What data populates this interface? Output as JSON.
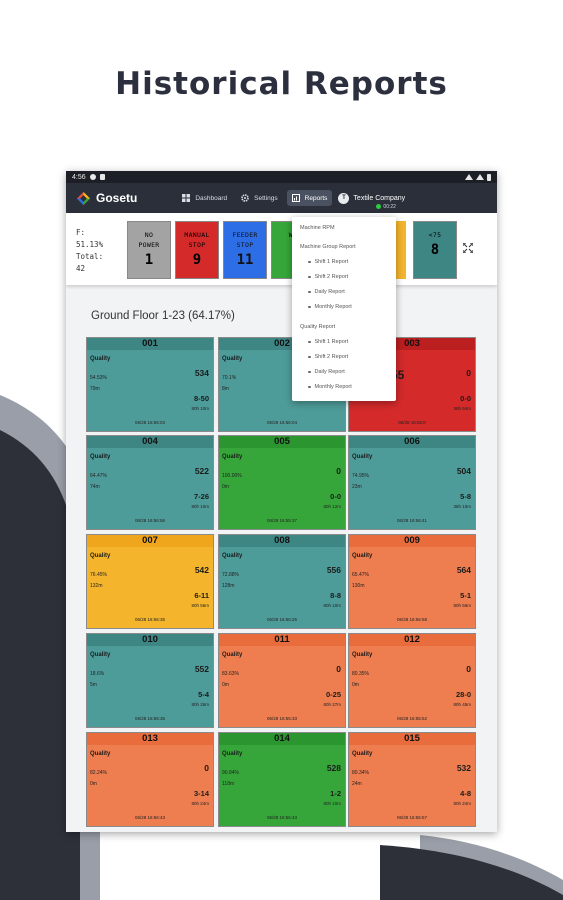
{
  "headline": "Historical Reports",
  "statusbar": {
    "time": "4:56"
  },
  "app": {
    "brand": "Gosetu"
  },
  "nav": [
    {
      "label": "Dashboard",
      "icon": "dashboard-icon"
    },
    {
      "label": "Settings",
      "icon": "gear-icon"
    },
    {
      "label": "Reports",
      "icon": "reports-icon",
      "active": true
    }
  ],
  "user": {
    "initial": "T",
    "company": "Textile Company",
    "clock": "00:22"
  },
  "stats": {
    "line1": "F:",
    "line2": "51.13%",
    "line3": "Total:",
    "line4": "42"
  },
  "summary_boxes": [
    {
      "label1": "NO",
      "label2": "POWER",
      "value": "1",
      "color": "#a3a3a3"
    },
    {
      "label1": "MANUAL",
      "label2": "STOP",
      "value": "9",
      "color": "#d42a2a"
    },
    {
      "label1": "FEEDER",
      "label2": "STOP",
      "value": "11",
      "color": "#2d6ee6"
    },
    {
      "label1": "Wo",
      "label2": "",
      "value": "",
      "color": "#36a63a"
    },
    {
      "label1": "<75",
      "label2": "",
      "value": "8",
      "color": "#3e8684"
    }
  ],
  "floor_title": "Ground Floor 1-23 (64.17%)",
  "machines": [
    {
      "id": "001",
      "color": "teal",
      "quality": "Quality",
      "pct": "54.53%",
      "dur": "79m",
      "count": "534",
      "shift": "8-50",
      "elapsed": "80h 10m",
      "ts": "06/28 16:56:03"
    },
    {
      "id": "002",
      "color": "teal",
      "quality": "Quality",
      "pct": "70.1%",
      "dur": "8m",
      "count": "",
      "shift": "",
      "elapsed": "",
      "ts": "06/28 16:56:04"
    },
    {
      "id": "003",
      "color": "red",
      "quality": "",
      "pct": "",
      "dur": "",
      "count": "0",
      "shift": "0-0",
      "elapsed": "38h 54m",
      "ts": "06/28 16:56:0",
      "big": "55"
    },
    {
      "id": "004",
      "color": "teal",
      "quality": "Quality",
      "pct": "64.47%",
      "dur": "74m",
      "count": "522",
      "shift": "7-26",
      "elapsed": "80h 10m",
      "ts": "06/28 16:56:56"
    },
    {
      "id": "005",
      "color": "green",
      "quality": "Quality",
      "pct": "100.00%",
      "dur": "0m",
      "count": "0",
      "shift": "0-0",
      "elapsed": "80h 12m",
      "ts": "06/28 16:55:37"
    },
    {
      "id": "006",
      "color": "teal",
      "quality": "Quality",
      "pct": "74.95%",
      "dur": "23m",
      "count": "504",
      "shift": "5-8",
      "elapsed": "38h 10m",
      "ts": "06/28 16:56:41"
    },
    {
      "id": "007",
      "color": "yellow",
      "quality": "Quality",
      "pct": "76.45%",
      "dur": "132m",
      "count": "542",
      "shift": "6-11",
      "elapsed": "80h 56m",
      "ts": "06/28 16:56:35"
    },
    {
      "id": "008",
      "color": "teal",
      "quality": "Quality",
      "pct": "72.88%",
      "dur": "128m",
      "count": "556",
      "shift": "8-8",
      "elapsed": "80h 10m",
      "ts": "06/28 16:56:25"
    },
    {
      "id": "009",
      "color": "orange",
      "quality": "Quality",
      "pct": "65.47%",
      "dur": "130m",
      "count": "564",
      "shift": "5-1",
      "elapsed": "80h 56m",
      "ts": "06/28 16:56:58"
    },
    {
      "id": "010",
      "color": "teal",
      "quality": "Quality",
      "pct": "18.6%",
      "dur": "5m",
      "count": "552",
      "shift": "5-4",
      "elapsed": "80h 26m",
      "ts": "06/28 16:56:35"
    },
    {
      "id": "011",
      "color": "orange",
      "quality": "Quality",
      "pct": "83.63%",
      "dur": "0m",
      "count": "0",
      "shift": "0-25",
      "elapsed": "80h 27m",
      "ts": "06/28 16:55:33"
    },
    {
      "id": "012",
      "color": "orange",
      "quality": "Quality",
      "pct": "80.35%",
      "dur": "0m",
      "count": "0",
      "shift": "28-0",
      "elapsed": "80h 45m",
      "ts": "06/28 16:55:52"
    },
    {
      "id": "013",
      "color": "orange",
      "quality": "Quality",
      "pct": "82.24%",
      "dur": "0m",
      "count": "0",
      "shift": "3-14",
      "elapsed": "80h 24m",
      "ts": "06/28 16:56:43"
    },
    {
      "id": "014",
      "color": "green",
      "quality": "Quality",
      "pct": "90.84%",
      "dur": "118m",
      "count": "528",
      "shift": "1-2",
      "elapsed": "80h 10m",
      "ts": "06/28 16:56:43"
    },
    {
      "id": "015",
      "color": "orange",
      "quality": "Quality",
      "pct": "80.34%",
      "dur": "24m",
      "count": "532",
      "shift": "4-8",
      "elapsed": "80h 24m",
      "ts": "06/28 16:55:57"
    }
  ],
  "dropdown": {
    "heading1": "Machine RPM",
    "heading2": "Machine Group Report",
    "group_items": [
      "Shift 1 Report",
      "Shift 2 Report",
      "Daily Report",
      "Monthly Report"
    ],
    "heading3": "Quality Report",
    "quality_items": [
      "Shift 1 Report",
      "Shift 2 Report",
      "Daily Report",
      "Monthly Report"
    ]
  }
}
